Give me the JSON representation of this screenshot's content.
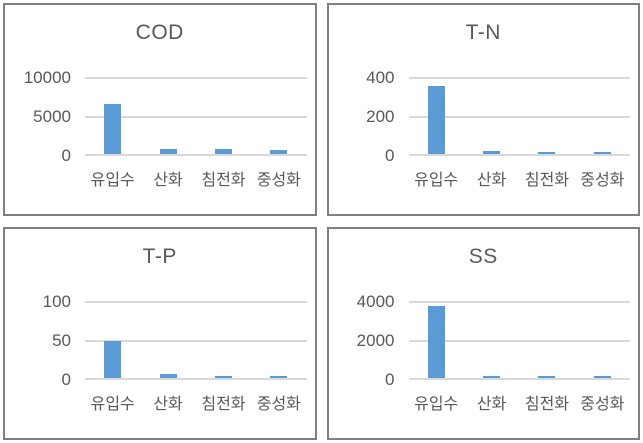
{
  "layout": {
    "background_color": "#ffffff",
    "panel_border_color": "#808080",
    "gridline_color": "#d9d9d9",
    "bar_color": "#5b9bd5",
    "title_color": "#595959",
    "label_color": "#595959"
  },
  "chart_data": [
    {
      "type": "bar",
      "title": "COD",
      "categories": [
        "유입수",
        "산화",
        "침전화",
        "중성화"
      ],
      "values": [
        6400,
        700,
        600,
        550
      ],
      "yticks": [
        0,
        5000,
        10000
      ],
      "ylim": [
        0,
        10000
      ],
      "grid": true,
      "legend": "none"
    },
    {
      "type": "bar",
      "title": "T-N",
      "categories": [
        "유입수",
        "산화",
        "침전화",
        "중성화"
      ],
      "values": [
        350,
        15,
        10,
        10
      ],
      "yticks": [
        0,
        200,
        400
      ],
      "ylim": [
        0,
        400
      ],
      "grid": true,
      "legend": "none"
    },
    {
      "type": "bar",
      "title": "T-P",
      "categories": [
        "유입수",
        "산화",
        "침전화",
        "중성화"
      ],
      "values": [
        48,
        5,
        2,
        2
      ],
      "yticks": [
        0,
        50,
        100
      ],
      "ylim": [
        0,
        100
      ],
      "grid": true,
      "legend": "none"
    },
    {
      "type": "bar",
      "title": "SS",
      "categories": [
        "유입수",
        "산화",
        "침전화",
        "중성화"
      ],
      "values": [
        3700,
        100,
        110,
        110
      ],
      "yticks": [
        0,
        2000,
        4000
      ],
      "ylim": [
        0,
        4000
      ],
      "grid": true,
      "legend": "none"
    }
  ]
}
